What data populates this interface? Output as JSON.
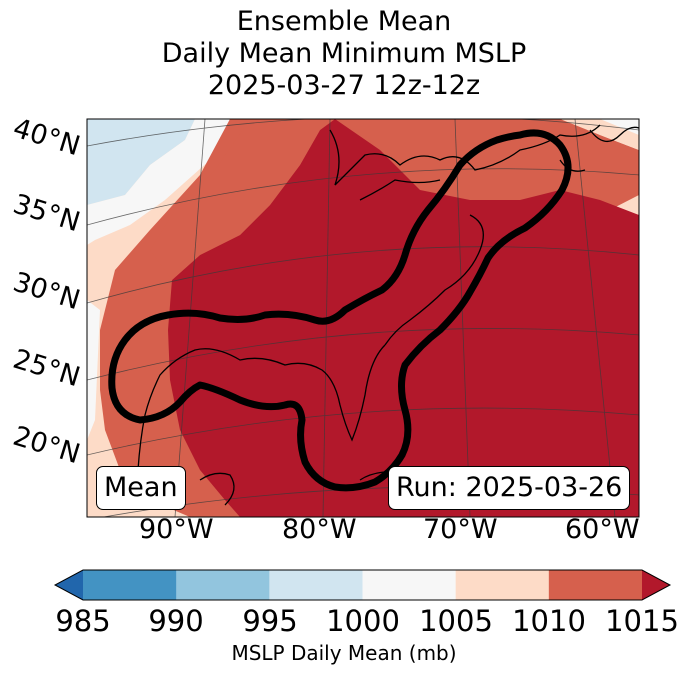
{
  "title_lines": [
    "Ensemble Mean",
    "Daily Mean Minimum MSLP",
    "2025-03-27 12z-12z"
  ],
  "lat_labels": [
    "40°N",
    "35°N",
    "30°N",
    "25°N",
    "20°N"
  ],
  "lon_labels": [
    "90°W",
    "80°W",
    "70°W",
    "60°W"
  ],
  "annotation_left": "Mean",
  "annotation_right": "Run: 2025-03-26",
  "colorbar": {
    "levels": [
      985,
      990,
      995,
      1000,
      1005,
      1010,
      1015
    ],
    "tick_labels": [
      "985",
      "990",
      "995",
      "1000",
      "1005",
      "1010",
      "1015"
    ],
    "colors": [
      "#4393c3",
      "#92c5de",
      "#d1e5f0",
      "#f7f7f7",
      "#fddbc7",
      "#d6604d"
    ],
    "under_color": "#2166ac",
    "over_color": "#b2182b",
    "label": "MSLP Daily Mean (mb)"
  },
  "chart_data": {
    "type": "heatmap",
    "variable": "MSLP Daily Mean",
    "units": "mb",
    "region": "Eastern United States and Gulf of Mexico",
    "lat_range_deg": [
      17,
      41
    ],
    "lon_range_deg": [
      -97,
      -59
    ],
    "vmin": 985,
    "vmax": 1015,
    "contour": "thick black outline around highest-pressure region (Gulf of Mexico, Florida, US East Coast)"
  }
}
